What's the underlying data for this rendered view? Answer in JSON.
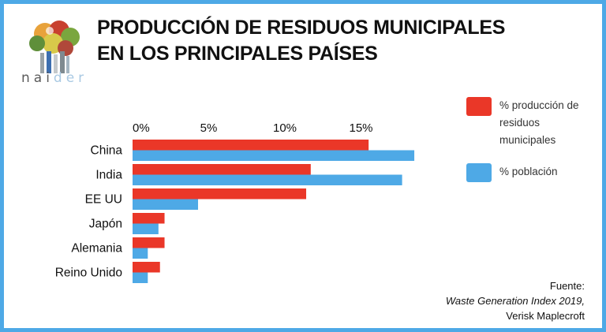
{
  "brand": {
    "logo_prefix": "nai",
    "logo_suffix": "der"
  },
  "title_line1": "PRODUCCIÓN DE RESIDUOS MUNICIPALES",
  "title_line2": "EN LOS PRINCIPALES PAÍSES",
  "legend": {
    "production": "% producción de residuos municipales",
    "population": "% población"
  },
  "source": {
    "label": "Fuente:",
    "publication": "Waste Generation Index 2019,",
    "author": "Verisk Maplecroft"
  },
  "colors": {
    "production": "#ea3728",
    "population": "#4ea9e6",
    "frame": "#4ea9e6"
  },
  "chart_data": {
    "type": "bar",
    "orientation": "horizontal",
    "categories": [
      "China",
      "India",
      "EE UU",
      "Japón",
      "Alemania",
      "Reino Unido"
    ],
    "series": [
      {
        "name": "% producción de residuos municipales",
        "values": [
          15.5,
          11.7,
          11.4,
          2.1,
          2.1,
          1.8
        ]
      },
      {
        "name": "% población",
        "values": [
          18.5,
          17.7,
          4.3,
          1.7,
          1.0,
          1.0
        ]
      }
    ],
    "x_ticks": [
      "0%",
      "5%",
      "10%",
      "15%"
    ],
    "xlim": [
      0,
      19
    ],
    "legend_position": "right",
    "grid": false
  }
}
